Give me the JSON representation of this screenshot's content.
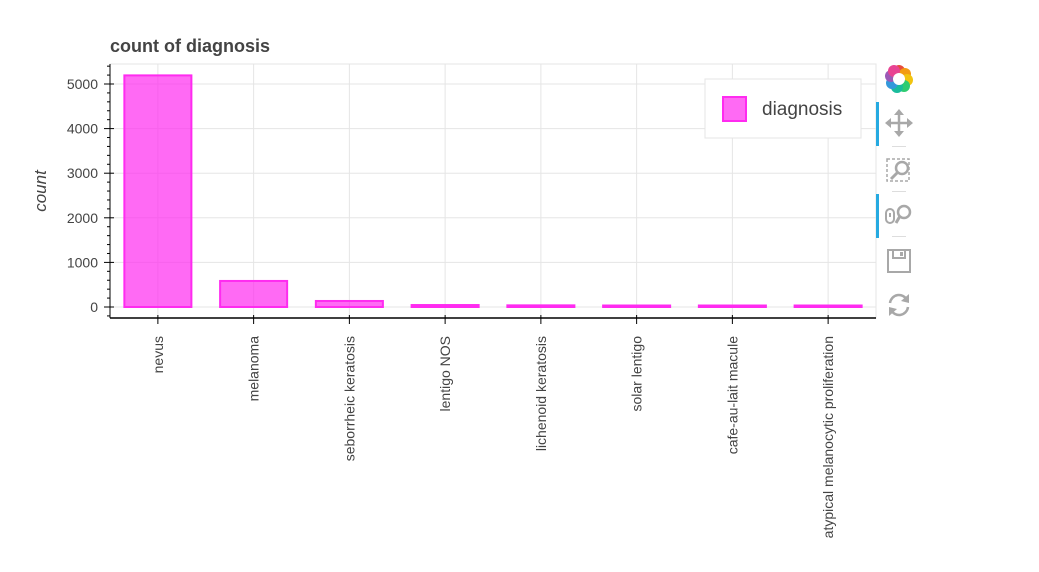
{
  "chart_data": {
    "type": "bar",
    "title": "count of diagnosis",
    "xlabel": "",
    "ylabel": "count",
    "categories": [
      "nevus",
      "melanoma",
      "seborrheic keratosis",
      "lentigo NOS",
      "lichenoid keratosis",
      "solar lentigo",
      "cafe-au-lait macule",
      "atypical melanocytic proliferation"
    ],
    "series": [
      {
        "name": "diagnosis",
        "values": [
          5193,
          584,
          135,
          44,
          37,
          7,
          1,
          1
        ]
      }
    ],
    "yticks": [
      "0",
      "1000",
      "2000",
      "3000",
      "4000",
      "5000"
    ],
    "ylim": [
      -250,
      5450
    ],
    "grid": true,
    "legend": {
      "position": "top-right",
      "label": "diagnosis"
    },
    "colors": {
      "bar_fill": "#ff2bf0",
      "bar_stroke": "#ff2bf0",
      "grid": "#e5e5e5",
      "axis": "#000000",
      "text": "#444444"
    }
  },
  "toolbar": {
    "tools": [
      {
        "name": "bokeh-logo-icon",
        "active": false
      },
      {
        "name": "pan-icon",
        "active": true
      },
      {
        "name": "box-zoom-icon",
        "active": false
      },
      {
        "name": "wheel-zoom-icon",
        "active": true
      },
      {
        "name": "save-icon",
        "active": false
      },
      {
        "name": "reset-icon",
        "active": false
      }
    ],
    "colors": {
      "icon": "#b3b3b3",
      "active": "#26aae1"
    }
  }
}
